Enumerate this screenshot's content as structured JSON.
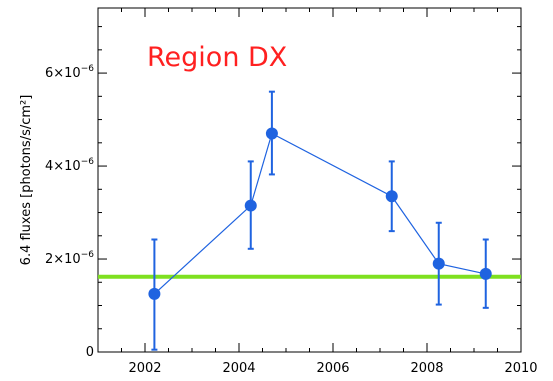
{
  "chart_data": {
    "type": "scatter",
    "ylabel": "6.4 fluxes [photons/s/cm²]",
    "annotation": {
      "text": "Region DX",
      "color": "#ff2020"
    },
    "xlim": [
      2001,
      2010
    ],
    "ylim": [
      0,
      7.4e-06
    ],
    "x_ticks": [
      2002,
      2004,
      2006,
      2008,
      2010
    ],
    "y_ticks": [
      {
        "value": 0,
        "mantissa": "0",
        "exponent": ""
      },
      {
        "value": 2e-06,
        "mantissa": "2×10",
        "exponent": "−6"
      },
      {
        "value": 4e-06,
        "mantissa": "4×10",
        "exponent": "−6"
      },
      {
        "value": 6e-06,
        "mantissa": "6×10",
        "exponent": "−6"
      }
    ],
    "series": [
      {
        "color": "#1f63e0",
        "points": [
          {
            "x": 2002.2,
            "y": 1.25e-06,
            "err_low": 5e-08,
            "err_high": 2.42e-06
          },
          {
            "x": 2004.25,
            "y": 3.15e-06,
            "err_low": 2.22e-06,
            "err_high": 4.1e-06
          },
          {
            "x": 2004.7,
            "y": 4.7e-06,
            "err_low": 3.82e-06,
            "err_high": 5.6e-06
          },
          {
            "x": 2007.25,
            "y": 3.35e-06,
            "err_low": 2.6e-06,
            "err_high": 4.1e-06
          },
          {
            "x": 2008.25,
            "y": 1.9e-06,
            "err_low": 1.02e-06,
            "err_high": 2.78e-06
          },
          {
            "x": 2009.25,
            "y": 1.68e-06,
            "err_low": 9.5e-07,
            "err_high": 2.42e-06
          }
        ]
      }
    ],
    "hline": {
      "y": 1.62e-06,
      "color": "#7ee020"
    }
  }
}
